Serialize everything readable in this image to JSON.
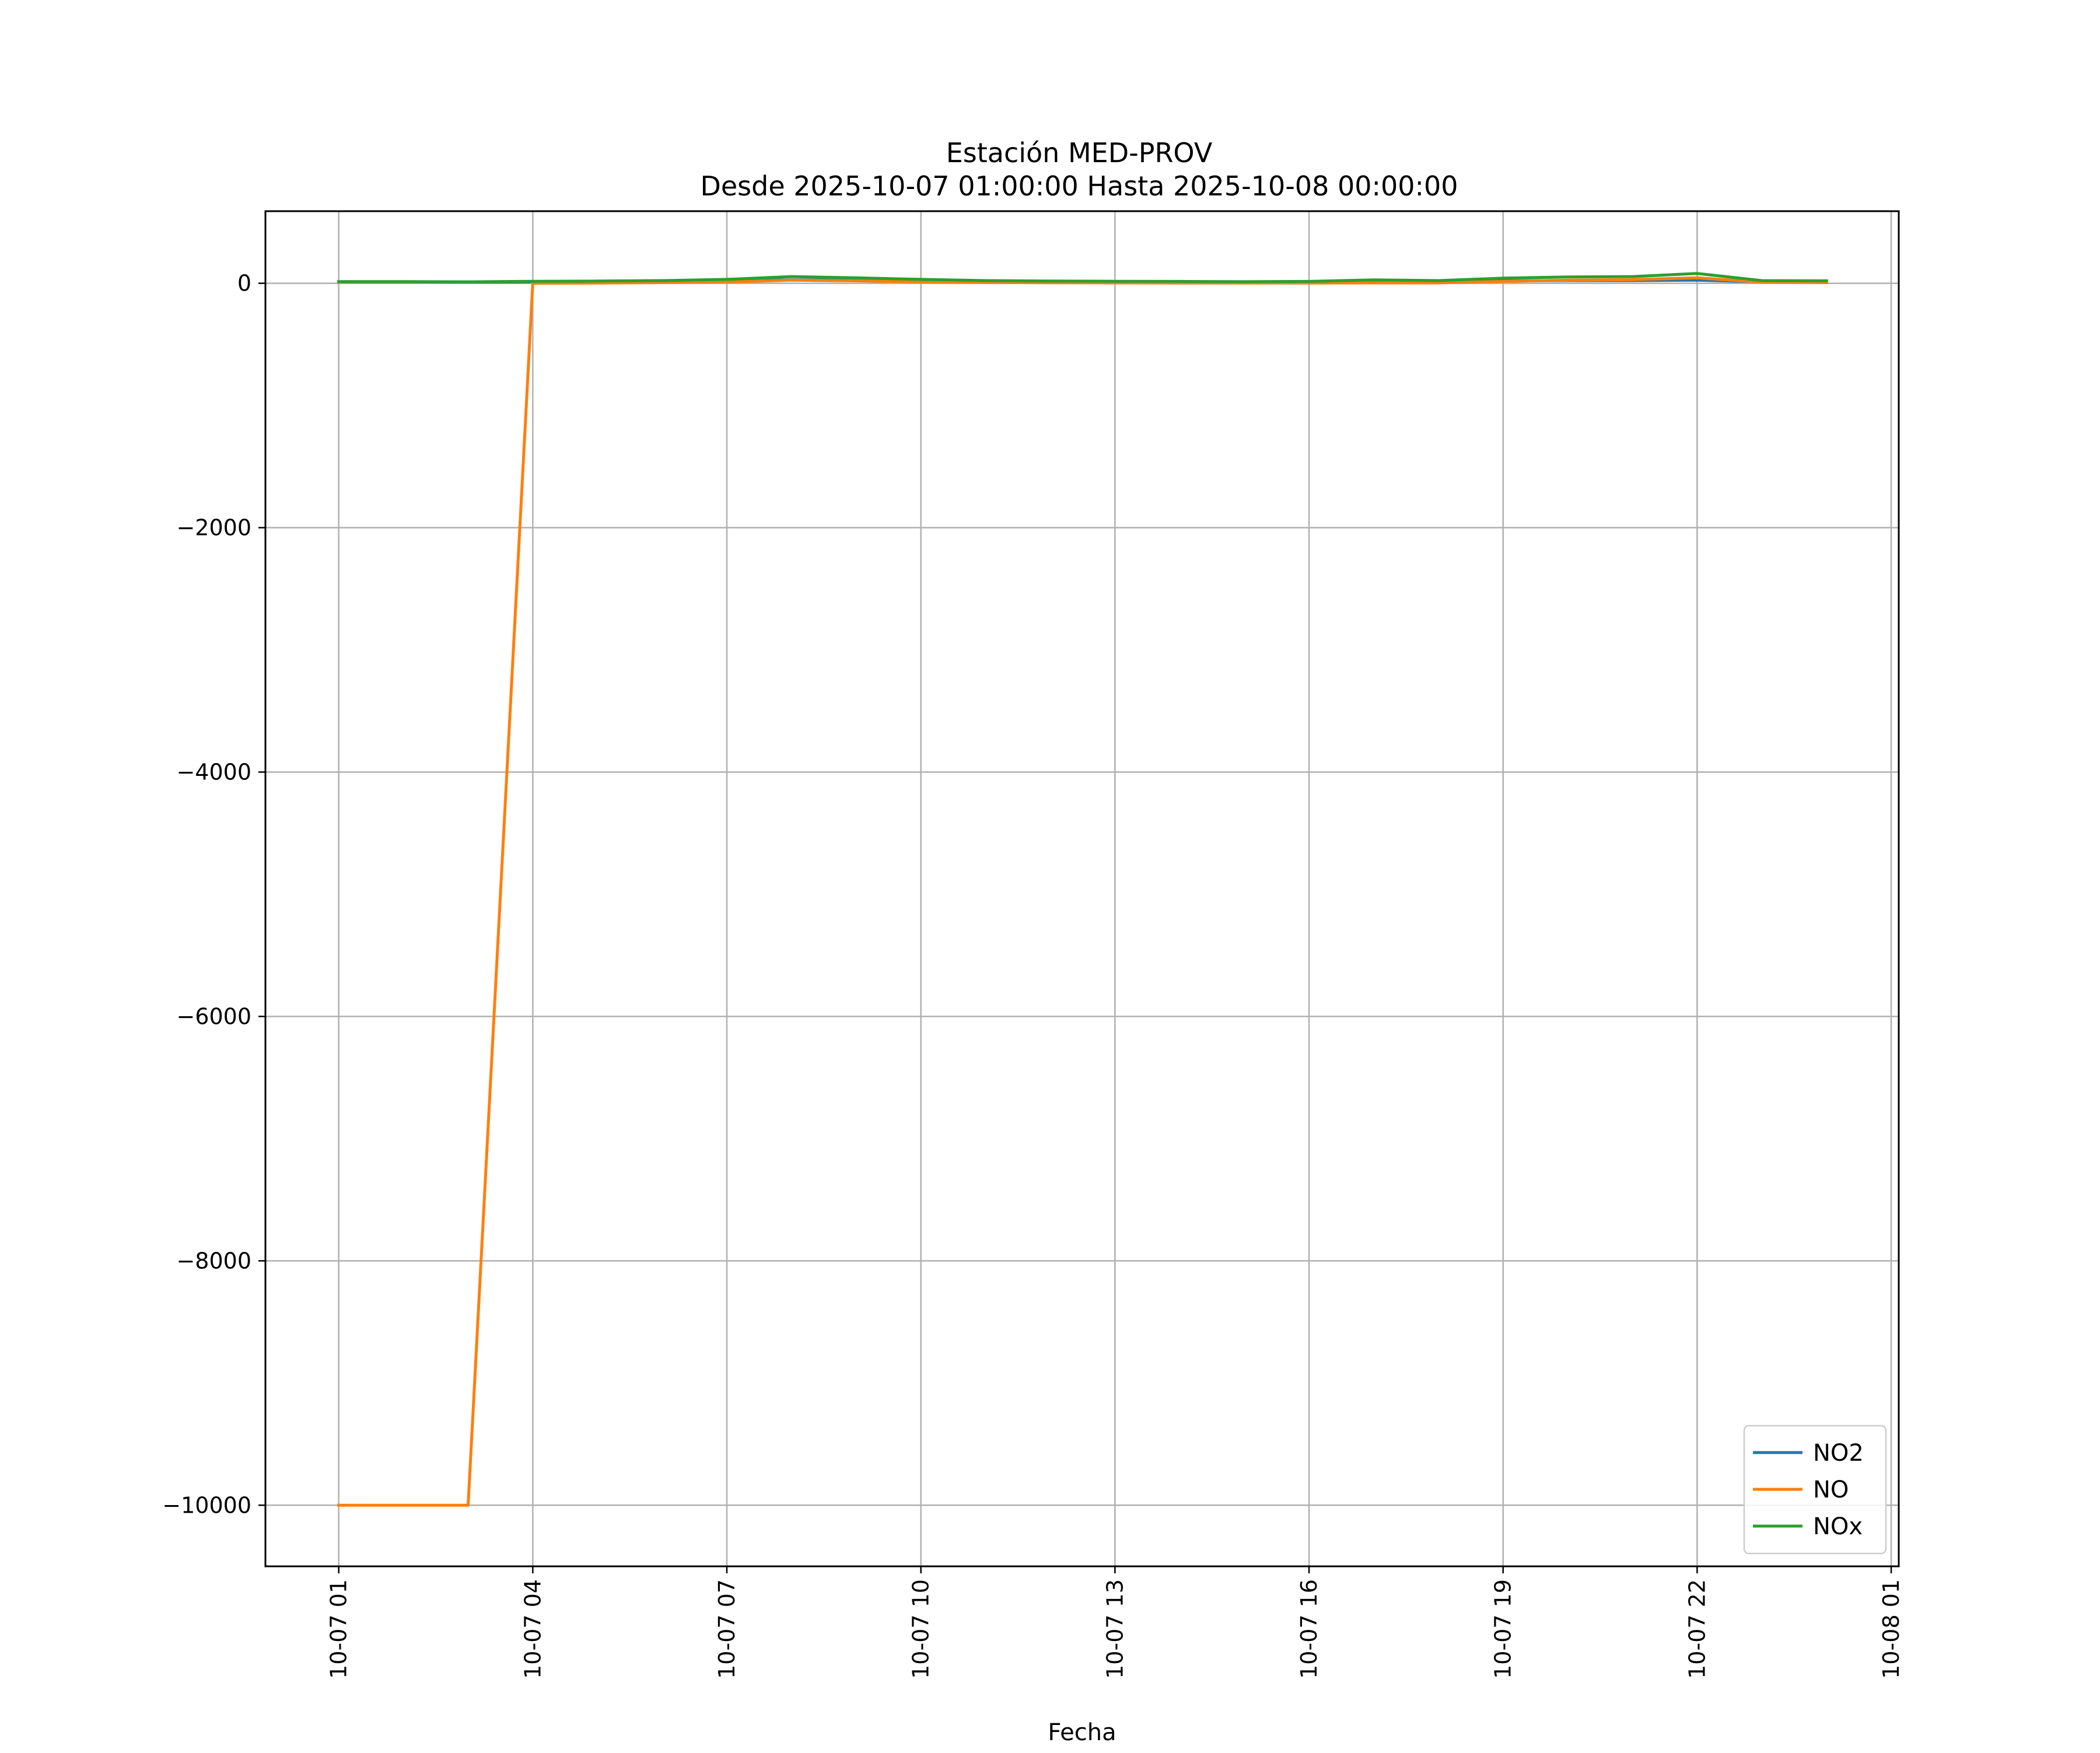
{
  "chart_data": {
    "type": "line",
    "title": "Estación MED-PROV",
    "subtitle": "Desde 2025-10-07 01:00:00 Hasta 2025-10-08 00:00:00",
    "xlabel": "Fecha",
    "ylabel": "",
    "x": [
      "2025-10-07 01:00",
      "2025-10-07 02:00",
      "2025-10-07 03:00",
      "2025-10-07 04:00",
      "2025-10-07 05:00",
      "2025-10-07 06:00",
      "2025-10-07 07:00",
      "2025-10-07 08:00",
      "2025-10-07 09:00",
      "2025-10-07 10:00",
      "2025-10-07 11:00",
      "2025-10-07 12:00",
      "2025-10-07 13:00",
      "2025-10-07 14:00",
      "2025-10-07 15:00",
      "2025-10-07 16:00",
      "2025-10-07 17:00",
      "2025-10-07 18:00",
      "2025-10-07 19:00",
      "2025-10-07 20:00",
      "2025-10-07 21:00",
      "2025-10-07 22:00",
      "2025-10-07 23:00",
      "2025-10-08 00:00"
    ],
    "xlim": [
      "2025-10-06 23:52",
      "2025-10-08 01:07"
    ],
    "ylim": [
      -10500,
      590
    ],
    "xticks": [
      {
        "value": "2025-10-07 01:00",
        "label": "10-07 01"
      },
      {
        "value": "2025-10-07 04:00",
        "label": "10-07 04"
      },
      {
        "value": "2025-10-07 07:00",
        "label": "10-07 07"
      },
      {
        "value": "2025-10-07 10:00",
        "label": "10-07 10"
      },
      {
        "value": "2025-10-07 13:00",
        "label": "10-07 13"
      },
      {
        "value": "2025-10-07 16:00",
        "label": "10-07 16"
      },
      {
        "value": "2025-10-07 19:00",
        "label": "10-07 19"
      },
      {
        "value": "2025-10-07 22:00",
        "label": "10-07 22"
      },
      {
        "value": "2025-10-08 01:00",
        "label": "10-08 01"
      }
    ],
    "yticks": [
      {
        "value": 0,
        "label": "0"
      },
      {
        "value": -2000,
        "label": "−2000"
      },
      {
        "value": -4000,
        "label": "−4000"
      },
      {
        "value": -6000,
        "label": "−6000"
      },
      {
        "value": -8000,
        "label": "−8000"
      },
      {
        "value": -10000,
        "label": "−10000"
      }
    ],
    "grid": true,
    "legend_position": "lower-right",
    "series": [
      {
        "name": "NO2",
        "color": "#1f77b4",
        "values": [
          12,
          12,
          10,
          11,
          13,
          15,
          20,
          28,
          25,
          20,
          15,
          13,
          12,
          12,
          10,
          12,
          15,
          13,
          20,
          22,
          22,
          25,
          12,
          12
        ]
      },
      {
        "name": "NO",
        "color": "#ff7f0e",
        "values": [
          -10000,
          -10000,
          -10000,
          0,
          2,
          5,
          10,
          25,
          20,
          10,
          6,
          4,
          3,
          2,
          2,
          2,
          3,
          3,
          15,
          25,
          30,
          45,
          8,
          5
        ]
      },
      {
        "name": "NOx",
        "color": "#2ca02c",
        "values": [
          14,
          14,
          12,
          16,
          18,
          22,
          32,
          55,
          45,
          32,
          22,
          18,
          16,
          15,
          13,
          15,
          28,
          22,
          42,
          52,
          55,
          80,
          22,
          20
        ]
      }
    ]
  }
}
